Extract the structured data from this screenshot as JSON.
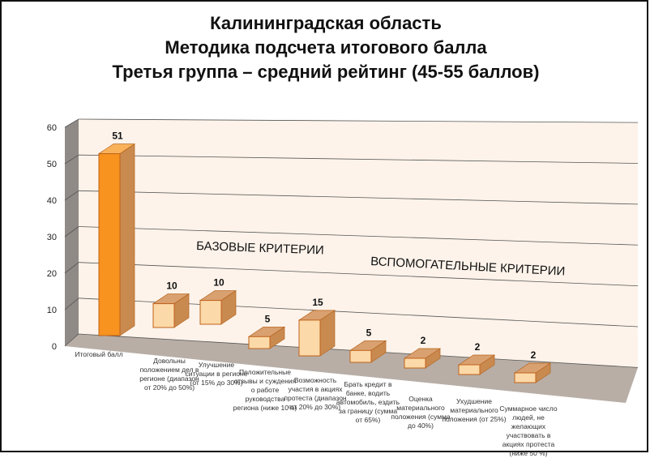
{
  "chart_data": {
    "type": "bar",
    "title_lines": [
      "Калининградская область",
      "Методика подсчета итогового балла",
      "Третья группа – средний рейтинг (45-55 баллов)"
    ],
    "categories": [
      "Итоговый балл",
      "Довольны положением дел в регионе (диапазон от 20% до 50%)",
      "Улучшение ситуации в регионе (от 15% до 30%)",
      "Положительные отзывы и суждения о работе руководства региона (ниже 10%)",
      "Возможность участия в акциях протеста (диапазон от 20% до 30%)",
      "Брать кредит в банке, водить автомобиль, ездить за границу (сумма от 65%)",
      "Оценка материального положения (сумма до 40%)",
      "Ухудшение материального положения (от 25%)",
      "Суммарное число людей, не желающих участвовать в акциях протеста (ниже 50 %)"
    ],
    "values": [
      51,
      10,
      10,
      5,
      15,
      5,
      2,
      2,
      2
    ],
    "ylim": [
      0,
      60
    ],
    "yticks": [
      "0",
      "10",
      "20",
      "30",
      "40",
      "50",
      "60"
    ],
    "grid": true,
    "three_d": true,
    "annotations": [
      "БАЗОВЫЕ КРИТЕРИИ",
      "ВСПОМОГАТЕЛЬНЫЕ КРИТЕРИИ"
    ],
    "colors": {
      "highlight": "#f7931e",
      "bar": "#fcd9a8",
      "bar_side": "#c98a50",
      "wall": "#fdf3ea",
      "floor": "#b8aea6"
    }
  }
}
